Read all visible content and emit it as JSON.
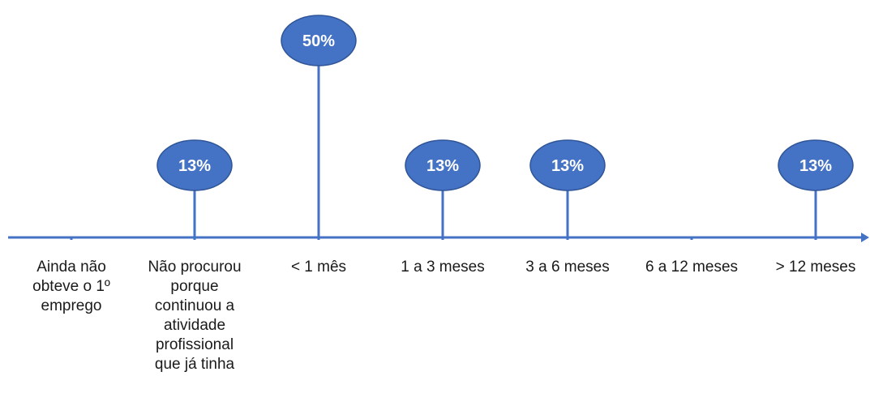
{
  "chart_data": {
    "type": "lollipop",
    "categories": [
      "Ainda não\nobteve o 1º\nemprego",
      "Não procurou\nporque\ncontinuou a\natividade\nprofissional\nque já tinha",
      "< 1  mês",
      "1  a  3 meses",
      "3  a  6 meses",
      "6  a 12 meses",
      "> 12 meses"
    ],
    "values": [
      0,
      13,
      50,
      13,
      13,
      0,
      13
    ],
    "value_labels": [
      "",
      "13%",
      "50%",
      "13%",
      "13%",
      "",
      "13%"
    ],
    "ylim": [
      0,
      50
    ],
    "title": "",
    "xlabel": "",
    "ylabel": "",
    "grid": false,
    "legend": "none"
  },
  "colors": {
    "accent": "#4472C4",
    "bubble_border": "#2F5597",
    "label_text": "#ffffff",
    "axis_text": "#1a1a1a"
  }
}
